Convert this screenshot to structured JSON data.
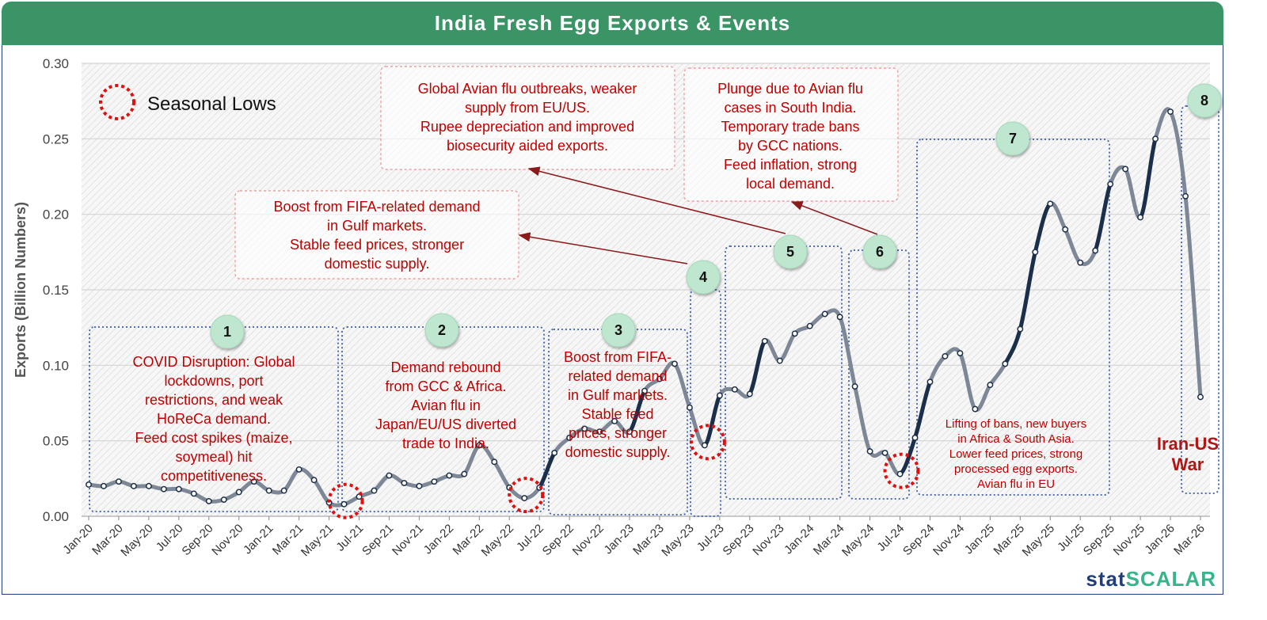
{
  "title": "India Fresh Egg Exports & Events",
  "brand": {
    "part1": "stat",
    "part2": "SCALAR"
  },
  "legend": {
    "label": "Seasonal Lows"
  },
  "chart_data": {
    "type": "line",
    "title": "India Fresh Egg Exports & Events",
    "ylabel": "Exports (Billion Numbers)",
    "xlabel": "",
    "ylim": [
      0,
      0.3
    ],
    "yticks": [
      "0.00",
      "0.05",
      "0.10",
      "0.15",
      "0.20",
      "0.25",
      "0.30"
    ],
    "grid": true,
    "x_tick_labels": [
      "Jan-20",
      "Mar-20",
      "May-20",
      "Jul-20",
      "Sep-20",
      "Nov-20",
      "Jan-21",
      "Mar-21",
      "May-21",
      "Jul-21",
      "Sep-21",
      "Nov-21",
      "Jan-22",
      "Mar-22",
      "May-22",
      "Jul-22",
      "Sep-22",
      "Nov-22",
      "Jan-23",
      "Mar-23",
      "May-23",
      "Jul-23",
      "Sep-23",
      "Nov-23",
      "Jan-24",
      "Mar-24",
      "May-24",
      "Jul-24",
      "Sep-24",
      "Nov-24",
      "Jan-25",
      "Mar-25",
      "May-25",
      "Jul-25",
      "Sep-25",
      "Nov-25",
      "Jan-26",
      "Mar-26"
    ],
    "x_months": [
      "Jan-20",
      "Feb-20",
      "Mar-20",
      "Apr-20",
      "May-20",
      "Jun-20",
      "Jul-20",
      "Aug-20",
      "Sep-20",
      "Oct-20",
      "Nov-20",
      "Dec-20",
      "Jan-21",
      "Feb-21",
      "Mar-21",
      "Apr-21",
      "May-21",
      "Jun-21",
      "Jul-21",
      "Aug-21",
      "Sep-21",
      "Oct-21",
      "Nov-21",
      "Dec-21",
      "Jan-22",
      "Feb-22",
      "Mar-22",
      "Apr-22",
      "May-22",
      "Jun-22",
      "Jul-22",
      "Aug-22",
      "Sep-22",
      "Oct-22",
      "Nov-22",
      "Dec-22",
      "Jan-23",
      "Feb-23",
      "Mar-23",
      "Apr-23",
      "May-23",
      "Jun-23",
      "Jul-23",
      "Aug-23",
      "Sep-23",
      "Oct-23",
      "Nov-23",
      "Dec-23",
      "Jan-24",
      "Feb-24",
      "Mar-24",
      "Apr-24",
      "May-24",
      "Jun-24",
      "Jul-24",
      "Aug-24",
      "Sep-24",
      "Oct-24",
      "Nov-24",
      "Dec-24",
      "Jan-25",
      "Feb-25",
      "Mar-25",
      "Apr-25",
      "May-25",
      "Jun-25",
      "Jul-25",
      "Aug-25",
      "Sep-25",
      "Oct-25",
      "Nov-25",
      "Dec-25",
      "Jan-26",
      "Feb-26",
      "Mar-26"
    ],
    "values": [
      0.021,
      0.02,
      0.023,
      0.02,
      0.02,
      0.018,
      0.018,
      0.015,
      0.01,
      0.011,
      0.016,
      0.023,
      0.017,
      0.017,
      0.031,
      0.024,
      0.009,
      0.008,
      0.013,
      0.017,
      0.027,
      0.022,
      0.02,
      0.023,
      0.027,
      0.028,
      0.047,
      0.036,
      0.019,
      0.012,
      0.019,
      0.042,
      0.052,
      0.058,
      0.056,
      0.063,
      0.056,
      0.083,
      0.091,
      0.101,
      0.072,
      0.047,
      0.08,
      0.084,
      0.081,
      0.116,
      0.103,
      0.121,
      0.126,
      0.134,
      0.132,
      0.086,
      0.043,
      0.042,
      0.028,
      0.052,
      0.089,
      0.106,
      0.108,
      0.071,
      0.087,
      0.101,
      0.124,
      0.175,
      0.207,
      0.19,
      0.168,
      0.176,
      0.22,
      0.23,
      0.198,
      0.25,
      0.268,
      0.212,
      0.079
    ],
    "events": [
      {
        "id": "1",
        "text": [
          "COVID Disruption: Global",
          "lockdowns, port",
          "restrictions, and weak",
          "HoReCa demand.",
          "Feed cost spikes (maize,",
          "soymeal) hit",
          "competitiveness."
        ]
      },
      {
        "id": "2",
        "text": [
          "Demand rebound",
          "from GCC & Africa.",
          "Avian flu in",
          "Japan/EU/US diverted",
          "trade to India."
        ]
      },
      {
        "id": "3",
        "text": [
          "Boost from FIFA-",
          "related demand",
          "in Gulf markets.",
          "Stable feed",
          "prices, stronger",
          "domestic supply."
        ]
      },
      {
        "id": "4",
        "text": [
          "Boost from FIFA-related demand",
          "in Gulf markets.",
          "Stable feed prices, stronger",
          "domestic supply."
        ]
      },
      {
        "id": "5",
        "text": [
          "Global Avian flu outbreaks, weaker",
          "supply from EU/US.",
          "Rupee depreciation and improved",
          "biosecurity aided exports."
        ]
      },
      {
        "id": "6",
        "text": [
          "Plunge due to Avian flu",
          "cases in South India.",
          "Temporary trade bans",
          "by GCC nations.",
          "Feed inflation, strong",
          "local demand."
        ]
      },
      {
        "id": "7",
        "text": [
          "Lifting of bans, new buyers",
          "in Africa & South Asia.",
          "Lower feed prices, strong",
          "processed egg exports.",
          "Avian flu in EU"
        ]
      },
      {
        "id": "8",
        "text": [
          "Iran-US",
          "War"
        ]
      }
    ],
    "seasonal_lows": [
      "Jun-21",
      "Jun-22",
      "Jun-23",
      "Jul-24"
    ]
  },
  "colors": {
    "banner": "#3a9466",
    "line_gray": "#7d8796",
    "line_dark": "#1c2f4a",
    "annotation_red": "#c00000",
    "period_box": "#3b5fb0",
    "badge_fill": "#bfe7cf",
    "arrow": "#8b1a1a"
  }
}
